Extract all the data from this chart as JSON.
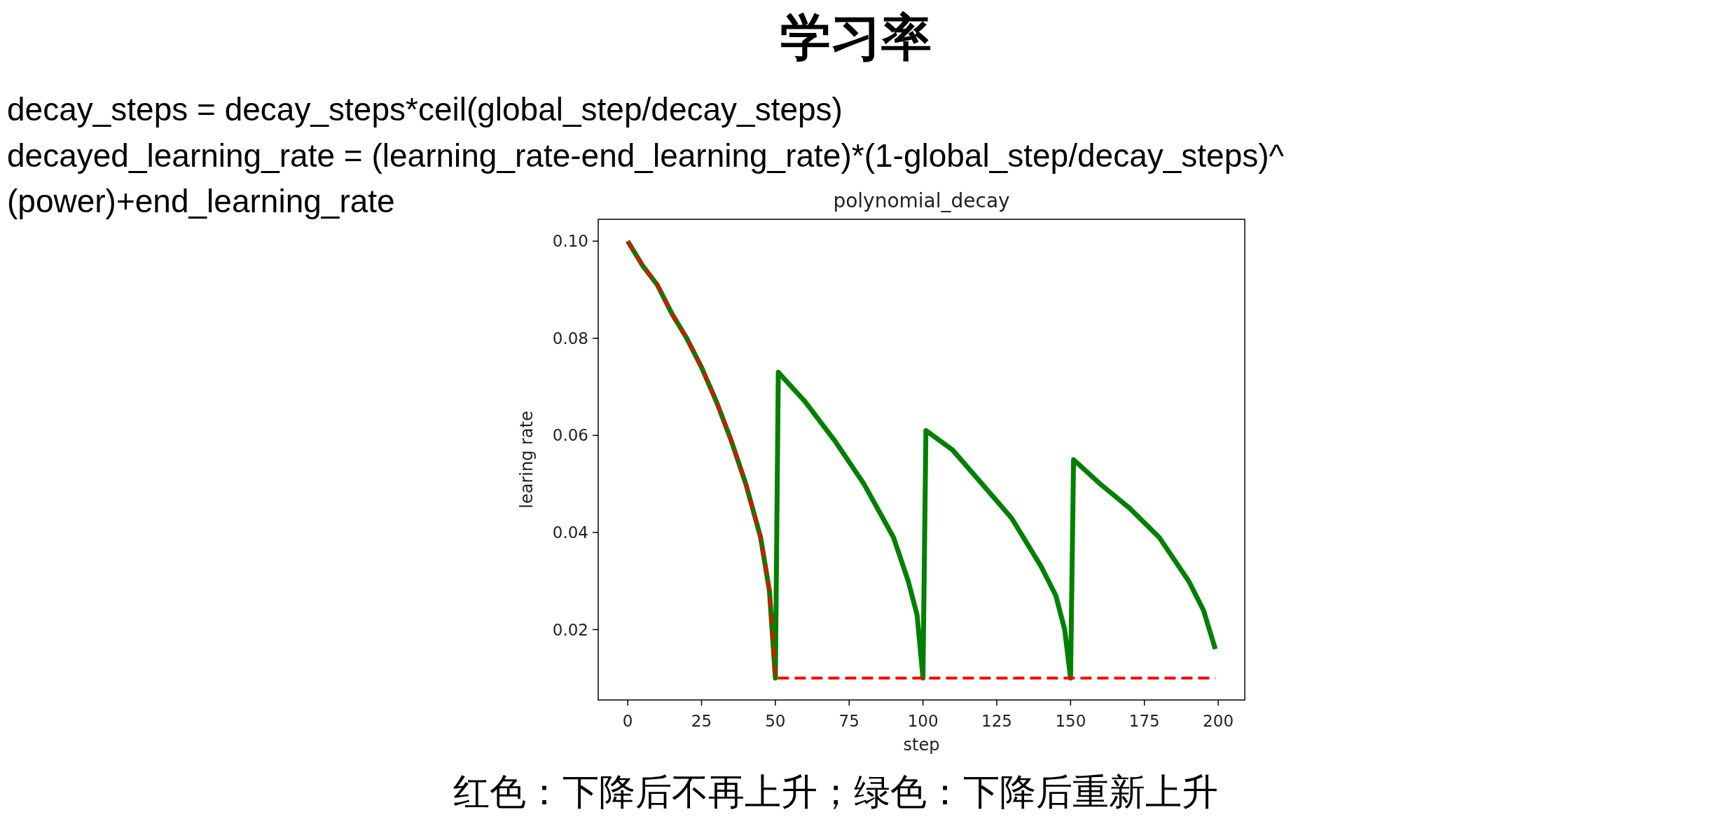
{
  "chart_data": {
    "type": "line",
    "title": "学习率",
    "subtitle": "polynomial_decay",
    "xlabel": "step",
    "ylabel": "learing rate",
    "annotations": [
      "decay_steps = decay_steps*ceil(global_step/decay_steps)",
      "decayed_learning_rate = (learning_rate-end_learning_rate)*(1-global_step/decay_steps)^",
      "(power)+end_learning_rate",
      "红色：下降后不再上升；绿色：下降后重新上升"
    ],
    "series": [
      {
        "color": "#008000",
        "line_style": "solid",
        "x": [
          0,
          5,
          10,
          15,
          20,
          25,
          30,
          35,
          40,
          45,
          48,
          50,
          51,
          60,
          70,
          80,
          90,
          95,
          98,
          100,
          101,
          110,
          120,
          130,
          140,
          145,
          148,
          150,
          151,
          160,
          170,
          180,
          190,
          195,
          199
        ],
        "values": [
          0.1,
          0.095,
          0.091,
          0.085,
          0.08,
          0.074,
          0.067,
          0.059,
          0.05,
          0.039,
          0.028,
          0.01,
          0.073,
          0.067,
          0.059,
          0.05,
          0.039,
          0.03,
          0.023,
          0.01,
          0.061,
          0.057,
          0.05,
          0.043,
          0.033,
          0.027,
          0.02,
          0.01,
          0.055,
          0.05,
          0.045,
          0.039,
          0.03,
          0.024,
          0.016
        ]
      },
      {
        "color": "#ff0000",
        "line_style": "dashed",
        "x": [
          0,
          5,
          10,
          15,
          20,
          25,
          30,
          35,
          40,
          45,
          48,
          50,
          199
        ],
        "values": [
          0.1,
          0.095,
          0.091,
          0.085,
          0.08,
          0.074,
          0.067,
          0.059,
          0.05,
          0.039,
          0.028,
          0.01,
          0.01
        ]
      }
    ],
    "xlim": [
      -10,
      209
    ],
    "ylim": [
      0.0055,
      0.1045
    ],
    "xticks": [
      0,
      25,
      50,
      75,
      100,
      125,
      150,
      175,
      200
    ],
    "yticks": [
      {
        "value": 0.02,
        "label": "0.02"
      },
      {
        "value": 0.04,
        "label": "0.04"
      },
      {
        "value": 0.06,
        "label": "0.06"
      },
      {
        "value": 0.08,
        "label": "0.08"
      },
      {
        "value": 0.1,
        "label": "0.10"
      }
    ]
  }
}
